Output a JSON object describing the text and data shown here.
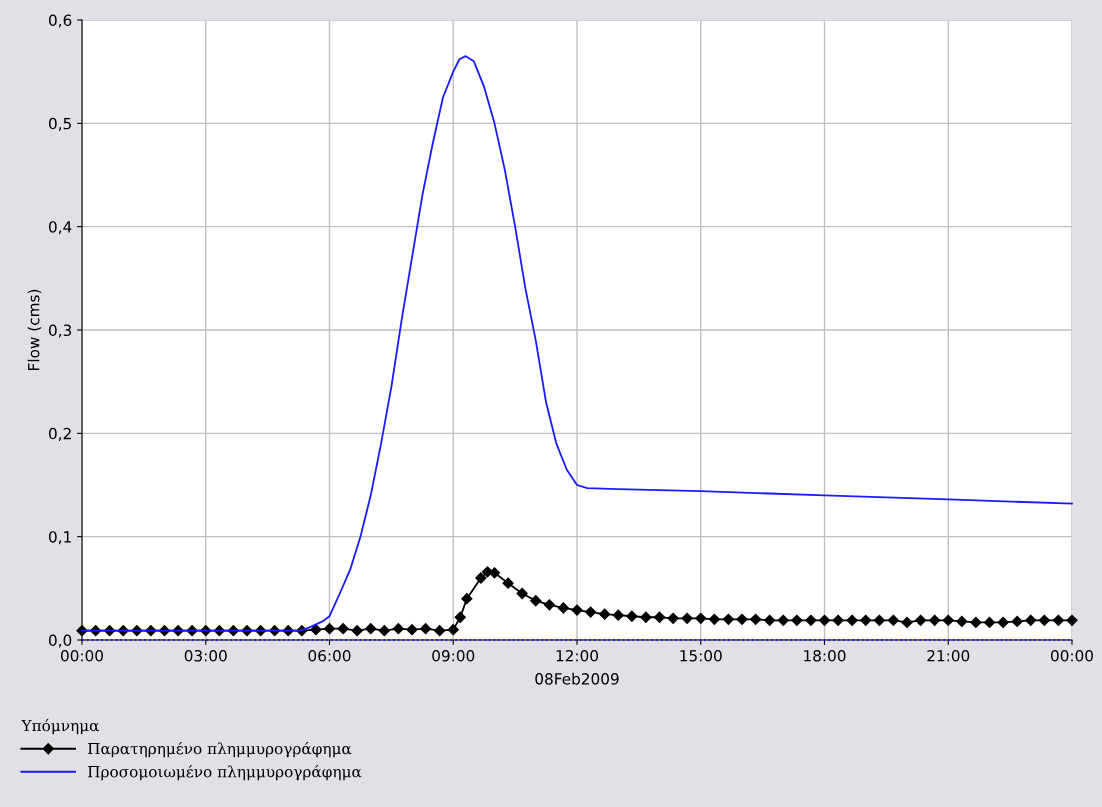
{
  "chart_data": {
    "type": "line",
    "xlabel": "08Feb2009",
    "ylabel": "Flow (cms)",
    "legend_title": "Υπόμνημα",
    "legend": "bottom left",
    "grid": true,
    "xlim": [
      0,
      24
    ],
    "xticks": [
      {
        "value": 0,
        "label": "00:00"
      },
      {
        "value": 3,
        "label": "03:00"
      },
      {
        "value": 6,
        "label": "06:00"
      },
      {
        "value": 9,
        "label": "09:00"
      },
      {
        "value": 12,
        "label": "12:00"
      },
      {
        "value": 15,
        "label": "15:00"
      },
      {
        "value": 18,
        "label": "18:00"
      },
      {
        "value": 21,
        "label": "21:00"
      },
      {
        "value": 24,
        "label": "00:00"
      }
    ],
    "ylim": [
      0,
      0.6
    ],
    "yticks": [
      {
        "value": 0,
        "label": "0,0"
      },
      {
        "value": 0.1,
        "label": "0,1"
      },
      {
        "value": 0.2,
        "label": "0,2"
      },
      {
        "value": 0.3,
        "label": "0,3"
      },
      {
        "value": 0.4,
        "label": "0,4"
      },
      {
        "value": 0.5,
        "label": "0,5"
      },
      {
        "value": 0.6,
        "label": "0,6"
      }
    ],
    "series": [
      {
        "name": "Παρατηρημένο πλημμυρογράφημα",
        "color": "#000000",
        "marker": "diamond",
        "line_style": "solid",
        "x": [
          0,
          0.33,
          0.67,
          1,
          1.33,
          1.67,
          2,
          2.33,
          2.67,
          3,
          3.33,
          3.67,
          4,
          4.33,
          4.67,
          5,
          5.33,
          5.67,
          6,
          6.33,
          6.67,
          7,
          7.33,
          7.67,
          8,
          8.33,
          8.67,
          9,
          9.17,
          9.33,
          9.67,
          9.83,
          10,
          10.33,
          10.67,
          11,
          11.33,
          11.67,
          12,
          12.33,
          12.67,
          13,
          13.33,
          13.67,
          14,
          14.33,
          14.67,
          15,
          15.33,
          15.67,
          16,
          16.33,
          16.67,
          17,
          17.33,
          17.67,
          18,
          18.33,
          18.67,
          19,
          19.33,
          19.67,
          20,
          20.33,
          20.67,
          21,
          21.33,
          21.67,
          22,
          22.33,
          22.67,
          23,
          23.33,
          23.67,
          24
        ],
        "values": [
          0.009,
          0.009,
          0.009,
          0.009,
          0.009,
          0.009,
          0.009,
          0.009,
          0.009,
          0.009,
          0.009,
          0.009,
          0.009,
          0.009,
          0.009,
          0.009,
          0.009,
          0.01,
          0.011,
          0.011,
          0.009,
          0.011,
          0.009,
          0.011,
          0.01,
          0.011,
          0.009,
          0.01,
          0.022,
          0.04,
          0.06,
          0.066,
          0.065,
          0.055,
          0.045,
          0.038,
          0.034,
          0.031,
          0.029,
          0.027,
          0.025,
          0.024,
          0.023,
          0.022,
          0.022,
          0.021,
          0.021,
          0.021,
          0.02,
          0.02,
          0.02,
          0.02,
          0.019,
          0.019,
          0.019,
          0.019,
          0.019,
          0.019,
          0.019,
          0.019,
          0.019,
          0.019,
          0.017,
          0.019,
          0.019,
          0.019,
          0.018,
          0.017,
          0.017,
          0.017,
          0.018,
          0.019,
          0.019,
          0.019,
          0.019
        ]
      },
      {
        "name": "Προσομοιωμένο πλημμυρογράφημα",
        "color": "#1a1aff",
        "marker": "none",
        "line_style": "solid",
        "x": [
          0,
          5.3,
          5.5,
          5.83,
          6,
          6.25,
          6.5,
          6.75,
          7,
          7.25,
          7.5,
          7.75,
          8,
          8.25,
          8.5,
          8.75,
          9,
          9.15,
          9.3,
          9.5,
          9.75,
          10,
          10.25,
          10.5,
          10.75,
          11,
          11.25,
          11.5,
          11.75,
          12,
          12.25,
          13,
          15,
          18,
          21,
          24
        ],
        "values": [
          0.009,
          0.009,
          0.012,
          0.018,
          0.023,
          0.045,
          0.068,
          0.1,
          0.14,
          0.19,
          0.245,
          0.31,
          0.37,
          0.43,
          0.48,
          0.525,
          0.55,
          0.562,
          0.565,
          0.56,
          0.535,
          0.5,
          0.455,
          0.4,
          0.34,
          0.29,
          0.23,
          0.19,
          0.165,
          0.15,
          0.147,
          0.146,
          0.144,
          0.14,
          0.136,
          0.132
        ]
      },
      {
        "color": "#1a1aff",
        "marker": "none",
        "line_style": "dotted",
        "x": [
          0,
          24
        ],
        "values": [
          0,
          0
        ]
      }
    ]
  }
}
